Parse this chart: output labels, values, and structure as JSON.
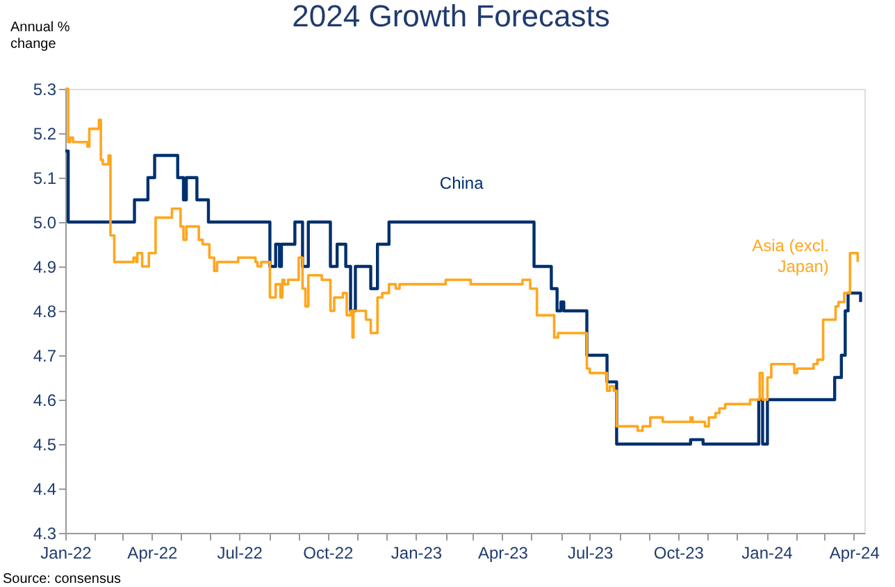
{
  "chart_data": {
    "type": "step",
    "title": "2024 Growth Forecasts",
    "ylabel": "Annual % change",
    "annotations": [
      "Source: consensus"
    ],
    "xlim": [
      "2022-01-01",
      "2024-04-12"
    ],
    "xticks": [
      {
        "value": "2022-01-01",
        "label": "Jan-22"
      },
      {
        "value": "2022-02-01",
        "label": null
      },
      {
        "value": "2022-03-01",
        "label": null
      },
      {
        "value": "2022-04-01",
        "label": "Apr-22"
      },
      {
        "value": "2022-05-01",
        "label": null
      },
      {
        "value": "2022-06-01",
        "label": null
      },
      {
        "value": "2022-07-01",
        "label": "Jul-22"
      },
      {
        "value": "2022-08-01",
        "label": null
      },
      {
        "value": "2022-09-01",
        "label": null
      },
      {
        "value": "2022-10-01",
        "label": "Oct-22"
      },
      {
        "value": "2022-11-01",
        "label": null
      },
      {
        "value": "2022-12-01",
        "label": null
      },
      {
        "value": "2023-01-01",
        "label": "Jan-23"
      },
      {
        "value": "2023-02-01",
        "label": null
      },
      {
        "value": "2023-03-01",
        "label": null
      },
      {
        "value": "2023-04-01",
        "label": "Apr-23"
      },
      {
        "value": "2023-05-01",
        "label": null
      },
      {
        "value": "2023-06-01",
        "label": null
      },
      {
        "value": "2023-07-01",
        "label": "Jul-23"
      },
      {
        "value": "2023-08-01",
        "label": null
      },
      {
        "value": "2023-09-01",
        "label": null
      },
      {
        "value": "2023-10-01",
        "label": "Oct-23"
      },
      {
        "value": "2023-11-01",
        "label": null
      },
      {
        "value": "2023-12-01",
        "label": null
      },
      {
        "value": "2024-01-01",
        "label": "Jan-24"
      },
      {
        "value": "2024-02-01",
        "label": null
      },
      {
        "value": "2024-03-01",
        "label": null
      },
      {
        "value": "2024-04-01",
        "label": "Apr-24"
      }
    ],
    "ylim": [
      4.3,
      5.3
    ],
    "yticks": [
      4.3,
      4.4,
      4.5,
      4.6,
      4.7,
      4.8,
      4.9,
      {
        "value": 5.0,
        "label": "5.0"
      },
      5.1,
      5.2,
      5.3
    ],
    "grid": false,
    "legend": false,
    "line_style": "solid",
    "series": [
      {
        "name": "China",
        "color": "#00306e",
        "x": [
          "2022-01-01",
          "2022-01-04",
          "2022-03-14",
          "2022-03-28",
          "2022-04-04",
          "2022-04-28",
          "2022-05-04",
          "2022-05-07",
          "2022-05-18",
          "2022-05-30",
          "2022-08-02",
          "2022-08-08",
          "2022-08-12",
          "2022-08-14",
          "2022-08-28",
          "2022-09-05",
          "2022-09-11",
          "2022-10-04",
          "2022-10-11",
          "2022-10-20",
          "2022-10-25",
          "2022-10-30",
          "2022-11-15",
          "2022-11-22",
          "2022-12-04",
          "2023-05-04",
          "2023-05-22",
          "2023-05-28",
          "2023-06-01",
          "2023-06-04",
          "2023-06-28",
          "2023-07-19",
          "2023-07-29",
          "2023-10-14",
          "2023-10-27",
          "2023-12-24",
          "2023-12-28",
          "2024-01-02",
          "2024-03-12",
          "2024-03-19",
          "2024-03-23",
          "2024-03-26",
          "2024-04-02",
          "2024-04-08"
        ],
        "values": [
          5.16,
          5.0,
          5.05,
          5.1,
          5.15,
          5.1,
          5.05,
          5.1,
          5.05,
          5.0,
          4.9,
          4.95,
          4.9,
          4.95,
          5.0,
          4.9,
          5.0,
          4.9,
          4.95,
          4.9,
          4.8,
          4.9,
          4.85,
          4.95,
          5.0,
          4.9,
          4.85,
          4.8,
          4.82,
          4.8,
          4.7,
          4.64,
          4.5,
          4.51,
          4.5,
          4.6,
          4.5,
          4.6,
          4.65,
          4.7,
          4.8,
          4.84,
          4.84,
          4.82
        ]
      },
      {
        "name": "Asia (excl. Japan)",
        "color": "#ffa61e",
        "x": [
          "2022-01-01",
          "2022-01-04",
          "2022-01-06",
          "2022-01-09",
          "2022-01-24",
          "2022-01-26",
          "2022-02-05",
          "2022-02-07",
          "2022-02-09",
          "2022-02-15",
          "2022-02-17",
          "2022-02-21",
          "2022-03-13",
          "2022-03-16",
          "2022-03-17",
          "2022-03-22",
          "2022-03-29",
          "2022-04-05",
          "2022-04-22",
          "2022-05-01",
          "2022-05-04",
          "2022-05-07",
          "2022-05-20",
          "2022-05-24",
          "2022-05-31",
          "2022-06-05",
          "2022-06-08",
          "2022-06-30",
          "2022-07-18",
          "2022-07-20",
          "2022-07-24",
          "2022-08-02",
          "2022-08-08",
          "2022-08-13",
          "2022-08-15",
          "2022-08-17",
          "2022-08-21",
          "2022-09-01",
          "2022-09-05",
          "2022-09-08",
          "2022-09-11",
          "2022-09-25",
          "2022-10-04",
          "2022-10-08",
          "2022-10-17",
          "2022-10-21",
          "2022-10-25",
          "2022-10-27",
          "2022-10-28",
          "2022-11-10",
          "2022-11-15",
          "2022-11-22",
          "2022-11-27",
          "2022-12-04",
          "2022-12-11",
          "2022-12-15",
          "2023-02-01",
          "2023-02-27",
          "2023-04-22",
          "2023-04-30",
          "2023-05-07",
          "2023-05-25",
          "2023-05-29",
          "2023-06-28",
          "2023-07-01",
          "2023-07-19",
          "2023-07-22",
          "2023-07-26",
          "2023-07-29",
          "2023-08-20",
          "2023-08-25",
          "2023-09-02",
          "2023-09-15",
          "2023-10-14",
          "2023-10-16",
          "2023-10-29",
          "2023-11-02",
          "2023-11-09",
          "2023-11-13",
          "2023-11-19",
          "2023-12-15",
          "2023-12-25",
          "2023-12-28",
          "2024-01-02",
          "2024-01-06",
          "2024-01-30",
          "2024-02-02",
          "2024-02-19",
          "2024-02-23",
          "2024-02-29",
          "2024-03-13",
          "2024-03-16",
          "2024-03-22",
          "2024-03-28",
          "2024-04-05"
        ],
        "values": [
          5.3,
          5.18,
          5.19,
          5.18,
          5.17,
          5.21,
          5.23,
          5.14,
          5.13,
          5.15,
          4.97,
          4.91,
          4.92,
          4.91,
          4.93,
          4.9,
          4.93,
          5.01,
          5.03,
          4.99,
          4.96,
          4.99,
          4.96,
          4.95,
          4.92,
          4.89,
          4.91,
          4.92,
          4.91,
          4.9,
          4.91,
          4.83,
          4.86,
          4.83,
          4.87,
          4.86,
          4.87,
          4.92,
          4.85,
          4.81,
          4.88,
          4.87,
          4.8,
          4.83,
          4.84,
          4.79,
          4.8,
          4.74,
          4.8,
          4.78,
          4.75,
          4.83,
          4.84,
          4.86,
          4.85,
          4.86,
          4.87,
          4.86,
          4.87,
          4.85,
          4.79,
          4.74,
          4.75,
          4.67,
          4.66,
          4.62,
          4.63,
          4.62,
          4.54,
          4.53,
          4.54,
          4.56,
          4.55,
          4.56,
          4.55,
          4.54,
          4.56,
          4.57,
          4.58,
          4.59,
          4.6,
          4.66,
          4.6,
          4.65,
          4.68,
          4.66,
          4.67,
          4.68,
          4.69,
          4.78,
          4.81,
          4.82,
          4.84,
          4.93,
          4.91
        ]
      }
    ]
  }
}
